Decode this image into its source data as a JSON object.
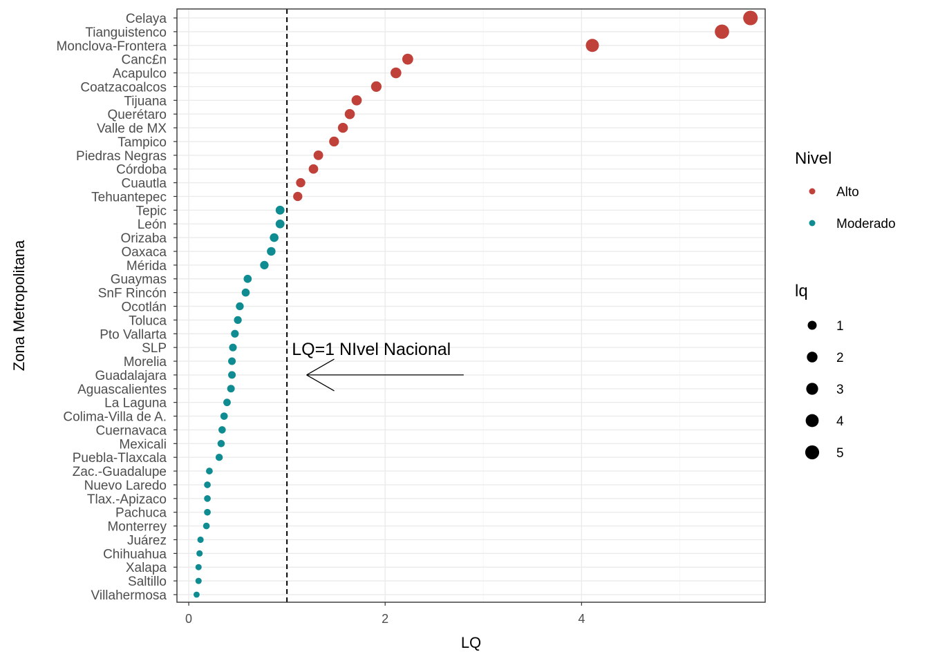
{
  "chart_data": {
    "type": "scatter",
    "xlabel": "LQ",
    "ylabel": "Zona Metropolitana",
    "xlim": [
      -0.12,
      5.87
    ],
    "xticks": [
      0,
      2,
      4
    ],
    "grid": true,
    "reference_line": {
      "x": 1,
      "style": "dashed"
    },
    "annotation": {
      "text": "LQ=1 NIvel Nacional",
      "x": 1.05,
      "arrow_from": 2.8,
      "arrow_to": 1.2
    },
    "colors": {
      "Alto": "#c0413a",
      "Moderado": "#0f8c91"
    },
    "legend_color": {
      "title": "Nivel",
      "entries": [
        "Alto",
        "Moderado"
      ],
      "position": "right"
    },
    "legend_size": {
      "title": "lq",
      "entries": [
        "1",
        "2",
        "3",
        "4",
        "5"
      ],
      "position": "right"
    },
    "categories": [
      "Celaya",
      "Tianguistenco",
      "Monclova-Frontera",
      "Canc£n",
      "Acapulco",
      "Coatzacoalcos",
      "Tijuana",
      "Querétaro",
      "Valle de MX",
      "Tampico",
      "Piedras Negras",
      "Córdoba",
      "Cuautla",
      "Tehuantepec",
      "Tepic",
      "León",
      "Orizaba",
      "Oaxaca",
      "Mérida",
      "Guaymas",
      "SnF Rincón",
      "Ocotlán",
      "Toluca",
      "Pto Vallarta",
      "SLP",
      "Morelia",
      "Guadalajara",
      "Aguascalientes",
      "La Laguna",
      "Colima-Villa de A.",
      "Cuernavaca",
      "Mexicali",
      "Puebla-Tlaxcala",
      "Zac.-Guadalupe",
      "Nuevo Laredo",
      "Tlax.-Apizaco",
      "Pachuca",
      "Monterrey",
      "Juárez",
      "Chihuahua",
      "Xalapa",
      "Saltillo",
      "Villahermosa"
    ],
    "values": [
      5.72,
      5.43,
      4.11,
      2.23,
      2.11,
      1.91,
      1.71,
      1.64,
      1.57,
      1.48,
      1.32,
      1.27,
      1.14,
      1.11,
      0.93,
      0.93,
      0.87,
      0.84,
      0.77,
      0.6,
      0.58,
      0.52,
      0.5,
      0.47,
      0.45,
      0.44,
      0.44,
      0.43,
      0.39,
      0.36,
      0.34,
      0.33,
      0.31,
      0.21,
      0.19,
      0.19,
      0.19,
      0.18,
      0.12,
      0.11,
      0.1,
      0.1,
      0.08
    ],
    "nivel": [
      "Alto",
      "Alto",
      "Alto",
      "Alto",
      "Alto",
      "Alto",
      "Alto",
      "Alto",
      "Alto",
      "Alto",
      "Alto",
      "Alto",
      "Alto",
      "Alto",
      "Moderado",
      "Moderado",
      "Moderado",
      "Moderado",
      "Moderado",
      "Moderado",
      "Moderado",
      "Moderado",
      "Moderado",
      "Moderado",
      "Moderado",
      "Moderado",
      "Moderado",
      "Moderado",
      "Moderado",
      "Moderado",
      "Moderado",
      "Moderado",
      "Moderado",
      "Moderado",
      "Moderado",
      "Moderado",
      "Moderado",
      "Moderado",
      "Moderado",
      "Moderado",
      "Moderado",
      "Moderado",
      "Moderado"
    ]
  }
}
